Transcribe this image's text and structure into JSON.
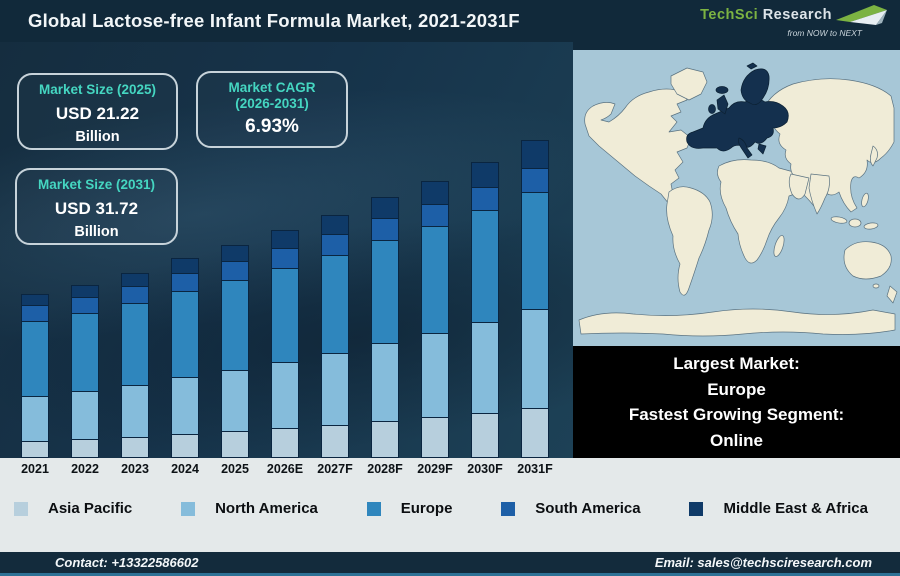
{
  "header": {
    "title": "Global Lactose-free Infant Formula Market, 2021-2031F",
    "logo": {
      "brand_primary": "TechSci",
      "brand_secondary": "Research",
      "tagline": "from NOW to NEXT"
    }
  },
  "stat_boxes": [
    {
      "title": "Market Size (2025)",
      "value": "USD 21.22",
      "unit": "Billion"
    },
    {
      "title": "Market CAGR",
      "subtitle": "(2026-2031)",
      "value": "6.93%"
    },
    {
      "title": "Market Size (2031)",
      "value": "USD 31.72",
      "unit": "Billion"
    }
  ],
  "chart_data": {
    "type": "bar",
    "stacked": true,
    "title": "Global Lactose-free Infant Formula Market, 2021-2031F",
    "unit": "USD Billion (estimated from stacked bars)",
    "categories": [
      "2021",
      "2022",
      "2023",
      "2024",
      "2025",
      "2026E",
      "2027F",
      "2028F",
      "2029F",
      "2030F",
      "2031F"
    ],
    "series": [
      {
        "name": "Asia Pacific",
        "color": "#b7cfdd",
        "values": [
          1.68,
          1.89,
          2.13,
          2.38,
          2.67,
          2.97,
          3.31,
          3.68,
          4.08,
          4.53,
          5.01
        ]
      },
      {
        "name": "North America",
        "color": "#85bcdb",
        "values": [
          4.44,
          4.81,
          5.21,
          5.65,
          6.12,
          6.63,
          7.17,
          7.76,
          8.4,
          9.09,
          9.83
        ]
      },
      {
        "name": "Europe",
        "color": "#2f86bd",
        "values": [
          7.43,
          7.79,
          8.17,
          8.56,
          8.97,
          9.38,
          9.81,
          10.25,
          10.71,
          11.18,
          11.67
        ]
      },
      {
        "name": "South America",
        "color": "#1d5fa7",
        "values": [
          1.55,
          1.63,
          1.71,
          1.79,
          1.88,
          1.96,
          2.05,
          2.15,
          2.24,
          2.34,
          2.44
        ]
      },
      {
        "name": "Middle East & Africa",
        "color": "#0f3a68",
        "values": [
          1.08,
          1.2,
          1.32,
          1.45,
          1.59,
          1.75,
          1.92,
          2.1,
          2.3,
          2.52,
          2.76
        ]
      }
    ],
    "totals_usd_billion": {
      "2025": 21.22,
      "2031": 31.72
    },
    "cagr_2026_2031": "6.93%",
    "ylim": [
      0,
      32
    ],
    "grid": false,
    "legend_position": "bottom"
  },
  "map": {
    "highlighted_region": "Europe"
  },
  "callout": {
    "lines": [
      "Largest Market:",
      "Europe",
      "Fastest Growing Segment:",
      "Online"
    ]
  },
  "footer": {
    "contact": "Contact: +13322586602",
    "email": "Email: sales@techsciresearch.com"
  },
  "colors": {
    "header-bg": "#11293a",
    "panel-bg1": "#152d3f",
    "panel-bg2": "#1d4156",
    "accent-teal": "#45d6c1",
    "box-border": "#c7d3da",
    "strip-bg": "#e4e9ea",
    "footer-bg": "#132b3c",
    "footer-line": "#2e7296",
    "ocean": "#a7c7d7",
    "land": "#f0ecd7",
    "land-stroke": "#5a7280",
    "highlight": "#14304e",
    "callout-bg": "#000000",
    "logo-green": "#7cb342",
    "logo-silver": "#dde4e9"
  }
}
